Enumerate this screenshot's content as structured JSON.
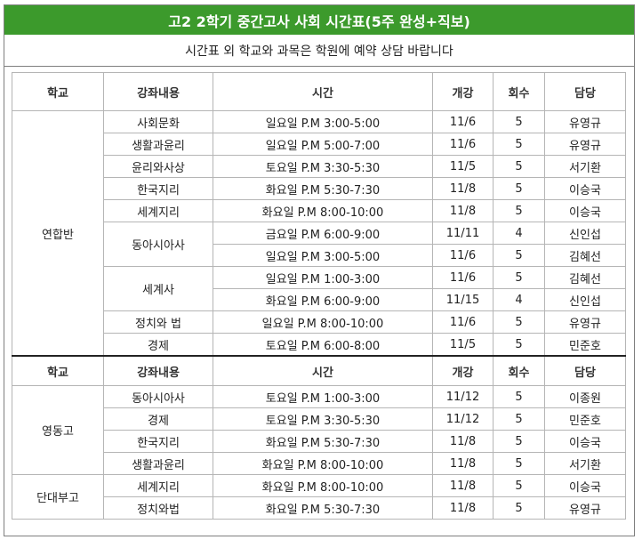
{
  "title": "고2 2학기 중간고사 사회 시간표(5주 완성+직보)",
  "subtitle": "시간표 외 학교와 과목은 학원에 예약 상담 바랍니다",
  "headers": {
    "school": "학교",
    "course": "강좌내용",
    "time": "시간",
    "start": "개강",
    "count": "회수",
    "teacher": "담당"
  },
  "section1": {
    "school": "연합반",
    "rows": [
      {
        "course": "사회문화",
        "time": "일요일 P.M 3:00-5:00",
        "start": "11/6",
        "count": "5",
        "teacher": "유영규"
      },
      {
        "course": "생활과윤리",
        "time": "일요일 P.M 5:00-7:00",
        "start": "11/6",
        "count": "5",
        "teacher": "유영규"
      },
      {
        "course": "윤리와사상",
        "time": "토요일 P.M 3:30-5:30",
        "start": "11/5",
        "count": "5",
        "teacher": "서기환"
      },
      {
        "course": "한국지리",
        "time": "화요일 P.M 5:30-7:30",
        "start": "11/8",
        "count": "5",
        "teacher": "이승국"
      },
      {
        "course": "세계지리",
        "time": "화요일 P.M 8:00-10:00",
        "start": "11/8",
        "count": "5",
        "teacher": "이승국"
      },
      {
        "course": "동아시아사",
        "time": "금요일 P.M 6:00-9:00",
        "start": "11/11",
        "count": "4",
        "teacher": "신인섭"
      },
      {
        "course": "",
        "time": "일요일 P.M 3:00-5:00",
        "start": "11/6",
        "count": "5",
        "teacher": "김혜선"
      },
      {
        "course": "세계사",
        "time": "일요일 P.M 1:00-3:00",
        "start": "11/6",
        "count": "5",
        "teacher": "김혜선"
      },
      {
        "course": "",
        "time": "화요일 P.M 6:00-9:00",
        "start": "11/15",
        "count": "4",
        "teacher": "신인섭"
      },
      {
        "course": "정치와 법",
        "time": "일요일 P.M 8:00-10:00",
        "start": "11/6",
        "count": "5",
        "teacher": "유영규"
      },
      {
        "course": "경제",
        "time": "토요일 P.M 6:00-8:00",
        "start": "11/5",
        "count": "5",
        "teacher": "민준호"
      }
    ]
  },
  "section2": {
    "school_a": "영동고",
    "school_b": "단대부고",
    "rows": [
      {
        "course": "동아시아사",
        "time": "토요일 P.M 1:00-3:00",
        "start": "11/12",
        "count": "5",
        "teacher": "이종원"
      },
      {
        "course": "경제",
        "time": "토요일 P.M 3:30-5:30",
        "start": "11/12",
        "count": "5",
        "teacher": "민준호"
      },
      {
        "course": "한국지리",
        "time": "화요일 P.M 5:30-7:30",
        "start": "11/8",
        "count": "5",
        "teacher": "이승국"
      },
      {
        "course": "생활과윤리",
        "time": "화요일 P.M 8:00-10:00",
        "start": "11/8",
        "count": "5",
        "teacher": "서기환"
      },
      {
        "course": "세계지리",
        "time": "화요일 P.M 8:00-10:00",
        "start": "11/8",
        "count": "5",
        "teacher": "이승국"
      },
      {
        "course": "정치와법",
        "time": "화요일 P.M 5:30-7:30",
        "start": "11/8",
        "count": "5",
        "teacher": "유영규"
      }
    ]
  }
}
